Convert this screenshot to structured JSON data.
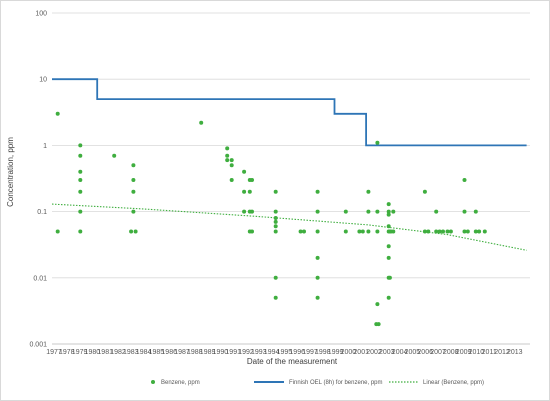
{
  "chart_data": {
    "type": "scatter",
    "title": "",
    "xlabel": "Date of the measurement",
    "ylabel": "Concentration, ppm",
    "y_scale": "log",
    "ylim": [
      0.001,
      100
    ],
    "xlim": [
      1977,
      2014
    ],
    "grid": "horizontal gridlines at decades",
    "x_ticks": [
      1977,
      1978,
      1979,
      1980,
      1981,
      1982,
      1983,
      1984,
      1985,
      1986,
      1987,
      1988,
      1989,
      1990,
      1991,
      1992,
      1993,
      1994,
      1995,
      1996,
      1997,
      1998,
      1999,
      2000,
      2001,
      2002,
      2003,
      2004,
      2005,
      2006,
      2007,
      2008,
      2009,
      2010,
      2011,
      2012,
      2013
    ],
    "y_ticks": [
      {
        "value": 100,
        "label": "100"
      },
      {
        "value": 10,
        "label": "10"
      },
      {
        "value": 1,
        "label": "1"
      },
      {
        "value": 0.1,
        "label": "0.1"
      },
      {
        "value": 0.01,
        "label": "0.01"
      },
      {
        "value": 0.001,
        "label": "0.001"
      }
    ],
    "legend_position": "bottom",
    "series": [
      {
        "name": "Benzene, ppm",
        "kind": "scatter",
        "color": "#3fae3f",
        "points": [
          [
            1977.5,
            3
          ],
          [
            1977.5,
            0.05
          ],
          [
            1979.5,
            1
          ],
          [
            1979.5,
            0.7
          ],
          [
            1979.5,
            0.4
          ],
          [
            1979.5,
            0.3
          ],
          [
            1979.5,
            0.2
          ],
          [
            1979.5,
            0.1
          ],
          [
            1979.5,
            0.05
          ],
          [
            1982.5,
            0.7
          ],
          [
            1984.2,
            0.5
          ],
          [
            1984.2,
            0.3
          ],
          [
            1984.2,
            0.2
          ],
          [
            1984.2,
            0.1
          ],
          [
            1984.0,
            0.05
          ],
          [
            1984.4,
            0.05
          ],
          [
            1990.2,
            2.2
          ],
          [
            1992.5,
            0.9
          ],
          [
            1992.5,
            0.7
          ],
          [
            1992.5,
            0.6
          ],
          [
            1992.9,
            0.6
          ],
          [
            1992.9,
            0.5
          ],
          [
            1992.9,
            0.3
          ],
          [
            1994.0,
            0.4
          ],
          [
            1994.0,
            0.2
          ],
          [
            1994.0,
            0.1
          ],
          [
            1994.5,
            0.3
          ],
          [
            1994.5,
            0.2
          ],
          [
            1994.5,
            0.1
          ],
          [
            1994.5,
            0.05
          ],
          [
            1994.7,
            0.3
          ],
          [
            1994.7,
            0.1
          ],
          [
            1994.7,
            0.05
          ],
          [
            1996.8,
            0.2
          ],
          [
            1996.8,
            0.1
          ],
          [
            1996.8,
            0.08
          ],
          [
            1996.8,
            0.07
          ],
          [
            1996.8,
            0.06
          ],
          [
            1996.8,
            0.05
          ],
          [
            1996.8,
            0.01
          ],
          [
            1996.8,
            0.005
          ],
          [
            1999.0,
            0.05
          ],
          [
            1999.3,
            0.05
          ],
          [
            2000.5,
            0.2
          ],
          [
            2000.5,
            0.1
          ],
          [
            2000.5,
            0.05
          ],
          [
            2000.5,
            0.02
          ],
          [
            2000.5,
            0.01
          ],
          [
            2000.5,
            0.005
          ],
          [
            2003.0,
            0.1
          ],
          [
            2003.0,
            0.05
          ],
          [
            2004.2,
            0.05
          ],
          [
            2004.5,
            0.05
          ],
          [
            2005.0,
            0.2
          ],
          [
            2005.0,
            0.1
          ],
          [
            2005.0,
            0.05
          ],
          [
            2005.8,
            1.1
          ],
          [
            2005.8,
            0.1
          ],
          [
            2005.8,
            0.05
          ],
          [
            2005.8,
            0.004
          ],
          [
            2005.7,
            0.002
          ],
          [
            2005.9,
            0.002
          ],
          [
            2006.8,
            0.13
          ],
          [
            2006.8,
            0.1
          ],
          [
            2006.8,
            0.09
          ],
          [
            2006.8,
            0.06
          ],
          [
            2006.8,
            0.05
          ],
          [
            2006.8,
            0.03
          ],
          [
            2006.8,
            0.02
          ],
          [
            2006.8,
            0.01
          ],
          [
            2006.8,
            0.005
          ],
          [
            2006.9,
            0.05
          ],
          [
            2006.9,
            0.01
          ],
          [
            2007.2,
            0.05
          ],
          [
            2007.2,
            0.1
          ],
          [
            2007.0,
            0.05
          ],
          [
            2010.0,
            0.2
          ],
          [
            2010.0,
            0.05
          ],
          [
            2010.3,
            0.05
          ],
          [
            2011.0,
            0.1
          ],
          [
            2011.0,
            0.05
          ],
          [
            2011.3,
            0.05
          ],
          [
            2011.6,
            0.05
          ],
          [
            2012.0,
            0.05
          ],
          [
            2012.3,
            0.05
          ],
          [
            2013.5,
            0.3
          ],
          [
            2013.5,
            0.1
          ],
          [
            2013.5,
            0.05
          ],
          [
            2013.8,
            0.05
          ],
          [
            2014.5,
            0.1
          ],
          [
            2014.5,
            0.05
          ],
          [
            2014.8,
            0.05
          ],
          [
            2015.3,
            0.05
          ]
        ]
      },
      {
        "name": "Finnish OEL (8h) for benzene, ppm",
        "kind": "step",
        "color": "#2e75b6",
        "points": [
          [
            1977,
            10
          ],
          [
            1981,
            10
          ],
          [
            1981,
            5
          ],
          [
            2002,
            5
          ],
          [
            2002,
            3
          ],
          [
            2004.8,
            3
          ],
          [
            2004.8,
            1
          ],
          [
            2019,
            1
          ]
        ]
      },
      {
        "name": "Linear (Benzene, ppm)",
        "kind": "trend-dotted",
        "color": "#3fae3f",
        "points": [
          [
            1977,
            0.13
          ],
          [
            1985,
            0.11
          ],
          [
            1995,
            0.085
          ],
          [
            2005,
            0.063
          ],
          [
            2012,
            0.045
          ],
          [
            2019,
            0.026
          ]
        ]
      }
    ]
  }
}
